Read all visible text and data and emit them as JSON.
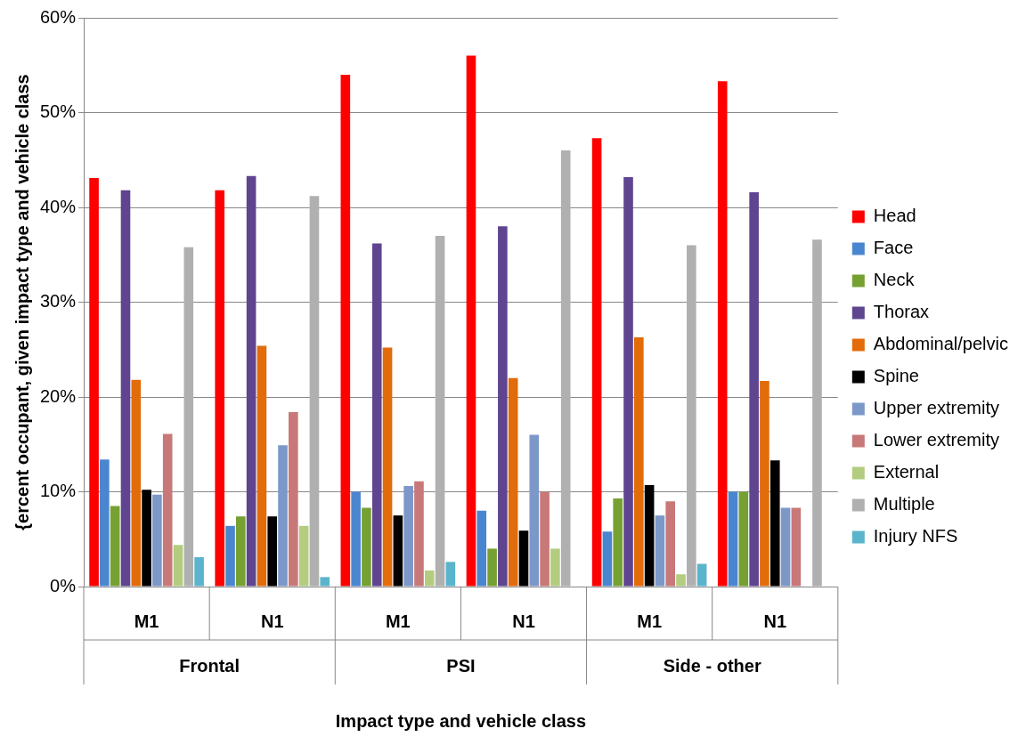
{
  "chart_data": {
    "type": "bar",
    "xlabel": "Impact type and vehicle class",
    "ylabel": "{ercent occupant, given impact type and vehicle class",
    "categories": [
      "M1",
      "N1",
      "M1",
      "N1",
      "M1",
      "N1"
    ],
    "annotations": [
      "Frontal",
      "PSI",
      "Side - other"
    ],
    "ylim": [
      0,
      60
    ],
    "yticks": [
      {
        "value": 0,
        "label": "0%"
      },
      {
        "value": 10,
        "label": "10%"
      },
      {
        "value": 20,
        "label": "20%"
      },
      {
        "value": 30,
        "label": "30%"
      },
      {
        "value": 40,
        "label": "40%"
      },
      {
        "value": 50,
        "label": "50%"
      },
      {
        "value": 60,
        "label": "60%"
      }
    ],
    "grid": "y",
    "legend": "right",
    "series": [
      {
        "name": "Head",
        "color": "#ff0000",
        "values": [
          43.1,
          41.8,
          54.0,
          56.0,
          47.3,
          53.3
        ]
      },
      {
        "name": "Face",
        "color": "#4a86d0",
        "values": [
          13.4,
          6.4,
          10.0,
          8.0,
          5.8,
          10.0
        ]
      },
      {
        "name": "Neck",
        "color": "#76a032",
        "values": [
          8.5,
          7.4,
          8.3,
          4.0,
          9.3,
          10.0
        ]
      },
      {
        "name": "Thorax",
        "color": "#5f4590",
        "values": [
          41.8,
          43.3,
          36.2,
          38.0,
          43.2,
          41.6
        ]
      },
      {
        "name": "Abdominal/pelvic",
        "color": "#e26b0a",
        "values": [
          21.8,
          25.4,
          25.2,
          22.0,
          26.3,
          21.7
        ]
      },
      {
        "name": "Spine",
        "color": "#000000",
        "values": [
          10.2,
          7.4,
          7.5,
          5.9,
          10.7,
          13.3
        ]
      },
      {
        "name": "Upper extremity",
        "color": "#7c98c8",
        "values": [
          9.7,
          14.9,
          10.6,
          16.0,
          7.5,
          8.3
        ]
      },
      {
        "name": "Lower extremity",
        "color": "#c87878",
        "values": [
          16.1,
          18.4,
          11.1,
          10.0,
          9.0,
          8.3
        ]
      },
      {
        "name": "External",
        "color": "#b3cc80",
        "values": [
          4.4,
          6.4,
          1.7,
          4.0,
          1.3,
          null
        ]
      },
      {
        "name": "Multiple",
        "color": "#b0b0b0",
        "values": [
          35.8,
          41.2,
          37.0,
          46.0,
          36.0,
          36.6
        ]
      },
      {
        "name": "Injury NFS",
        "color": "#5ab4cc",
        "values": [
          3.1,
          1.0,
          2.6,
          null,
          2.4,
          null
        ]
      }
    ]
  }
}
